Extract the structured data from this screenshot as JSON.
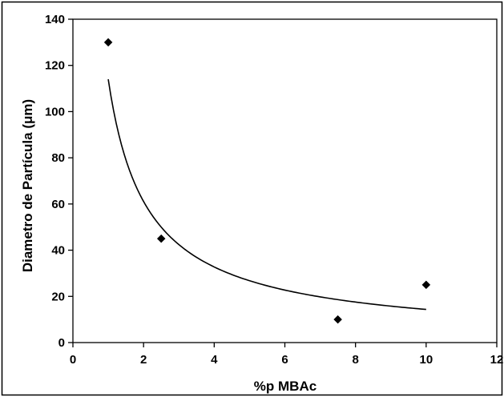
{
  "chart_data": {
    "type": "scatter",
    "title": "",
    "xlabel": "%p MBAc",
    "ylabel": "Diametro de Partícula (μm)",
    "xlim": [
      0,
      12
    ],
    "ylim": [
      0,
      140
    ],
    "x_ticks": [
      0,
      2,
      4,
      6,
      8,
      10,
      12
    ],
    "y_ticks": [
      0,
      20,
      40,
      60,
      80,
      100,
      120,
      140
    ],
    "grid": false,
    "legend": "none",
    "series": [
      {
        "points": [
          {
            "x": 1,
            "y": 130
          },
          {
            "x": 2.5,
            "y": 45
          },
          {
            "x": 7.5,
            "y": 10
          },
          {
            "x": 10,
            "y": 25
          }
        ],
        "marker": "diamond",
        "color": "#000000"
      }
    ],
    "trendline": {
      "kind": "power",
      "a": 114,
      "b": -0.9,
      "x_range": [
        1,
        10
      ],
      "color": "#000000"
    }
  }
}
